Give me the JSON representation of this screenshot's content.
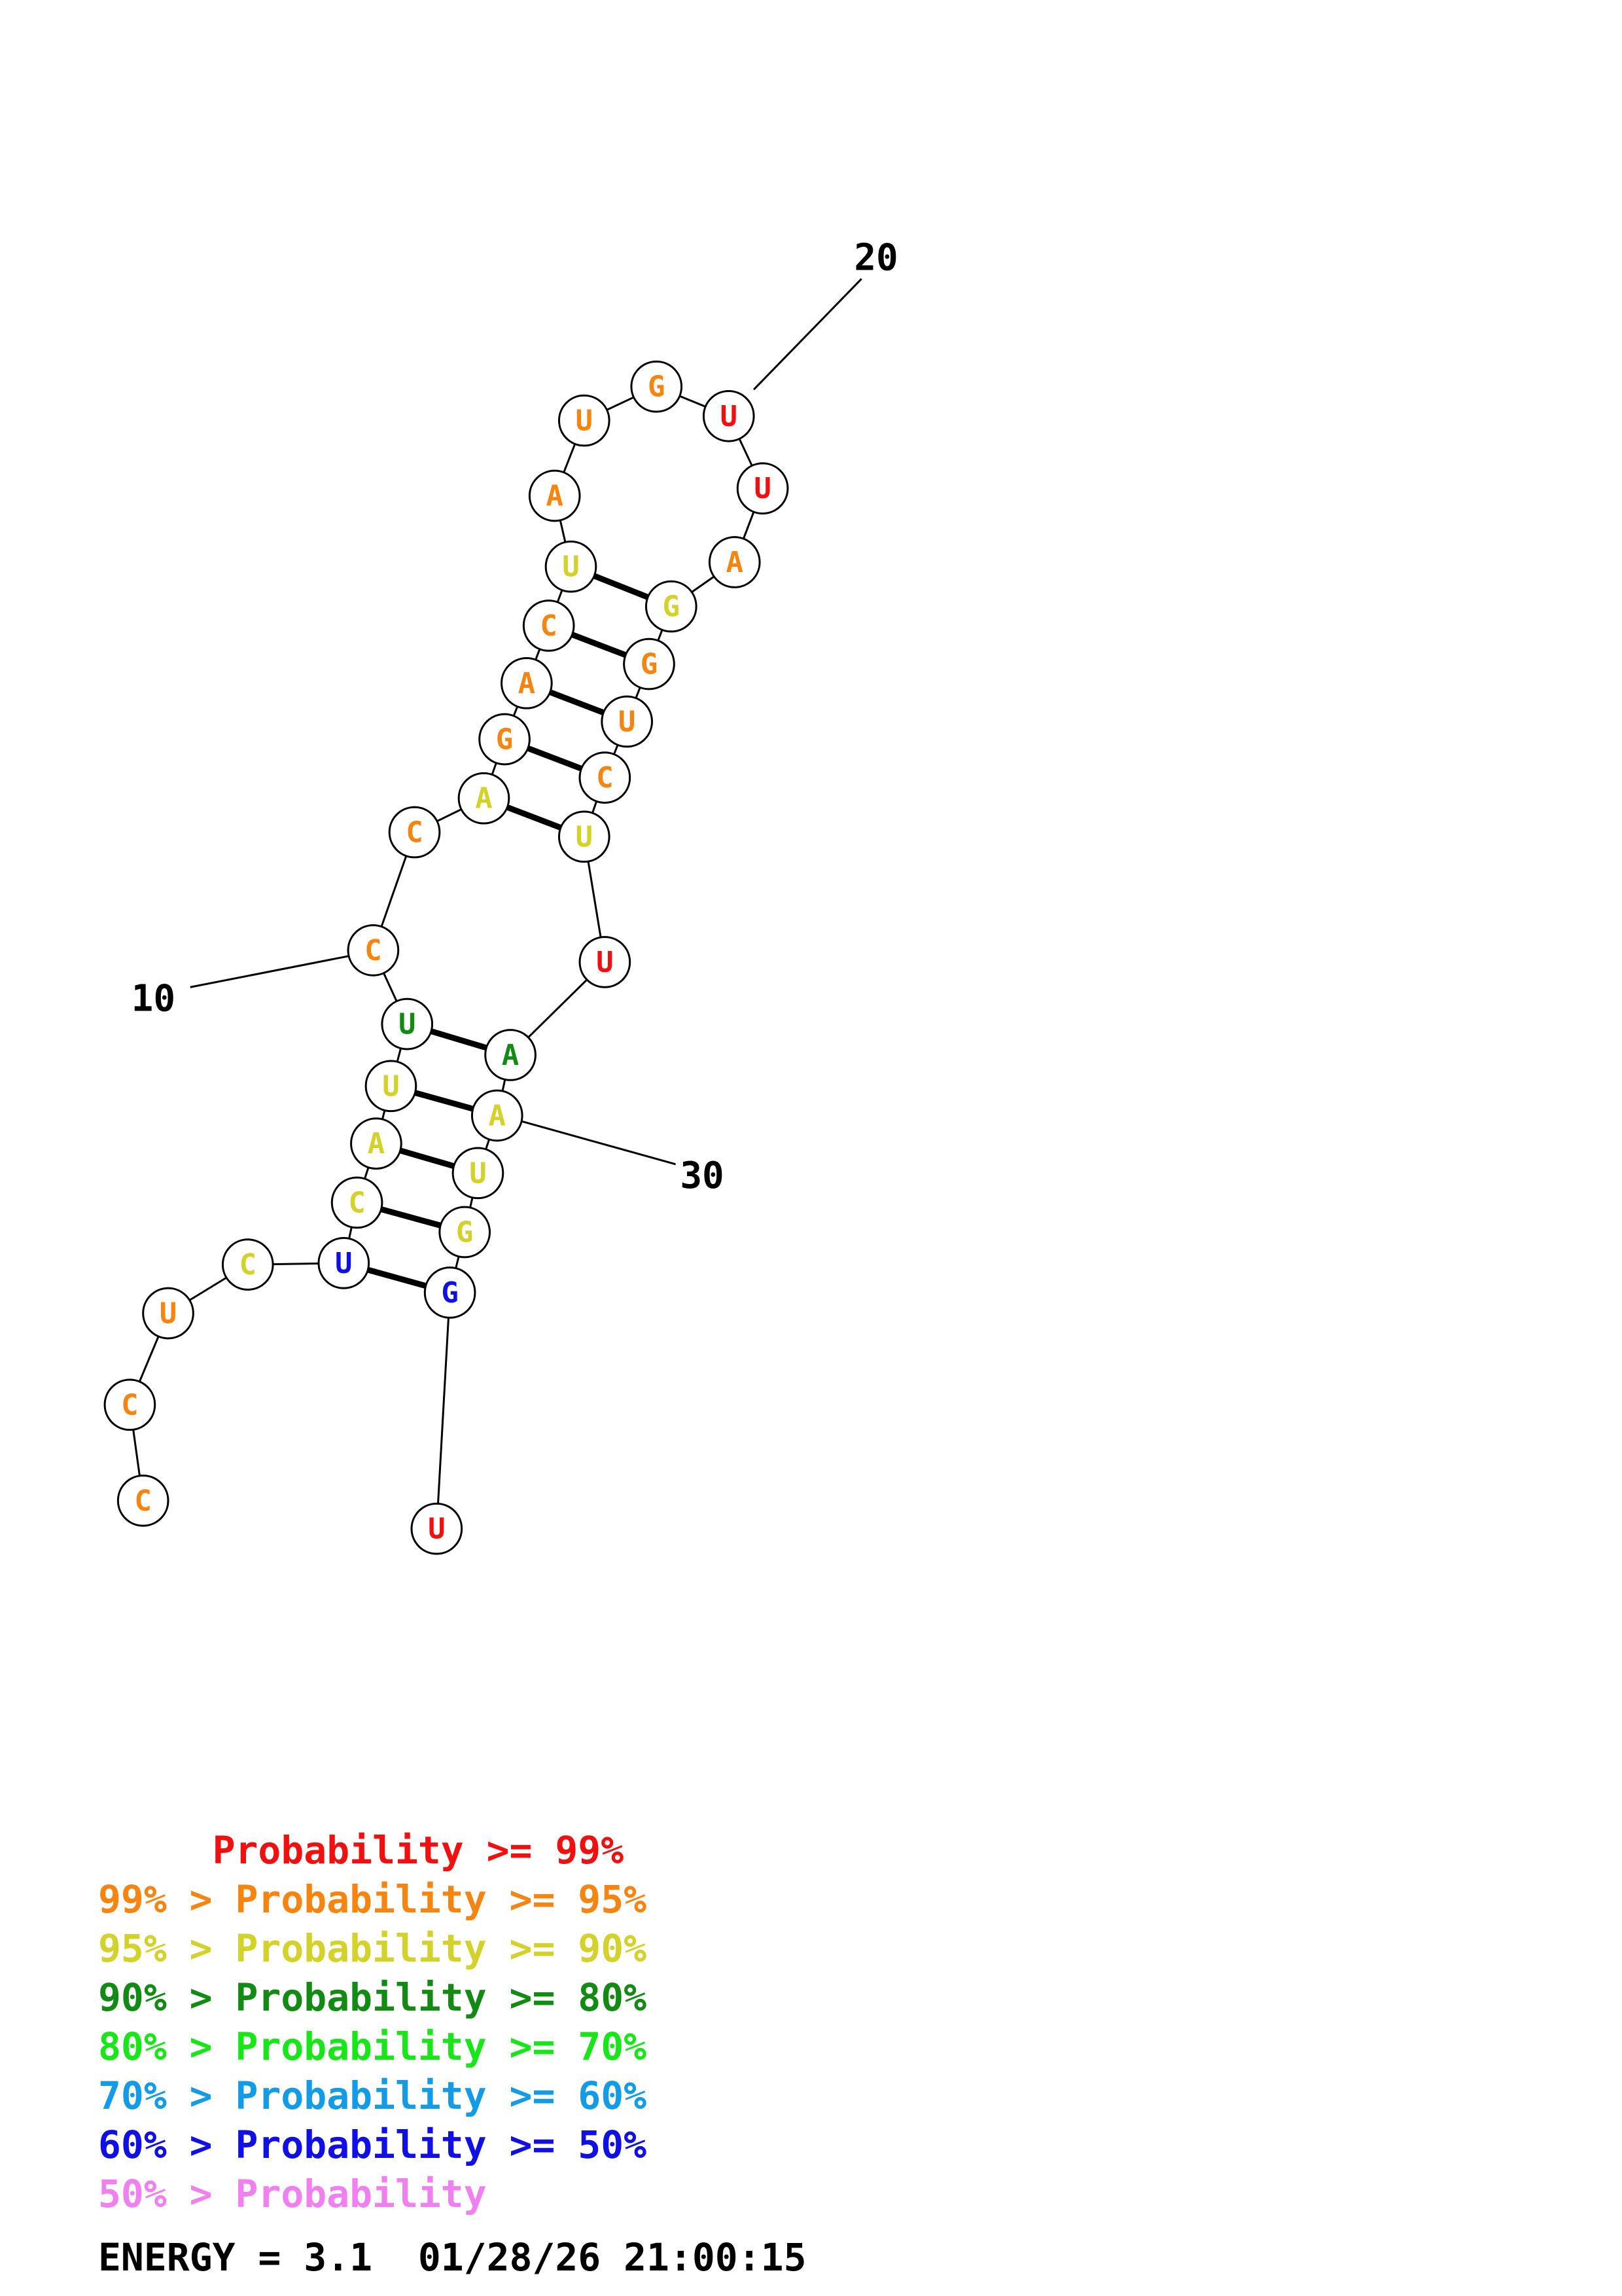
{
  "colors": {
    "red": "#f01010",
    "orange": "#f58410",
    "yellow": "#d2d22a",
    "darkgreen": "#138a13",
    "green": "#19e619",
    "cyan": "#149be6",
    "blue": "#1010e6",
    "pink": "#f080f0"
  },
  "nucleotides": [
    {
      "base": "C",
      "color": "orange"
    },
    {
      "base": "C",
      "color": "orange"
    },
    {
      "base": "U",
      "color": "orange"
    },
    {
      "base": "C",
      "color": "yellow"
    },
    {
      "base": "U",
      "color": "blue"
    },
    {
      "base": "C",
      "color": "yellow"
    },
    {
      "base": "A",
      "color": "yellow"
    },
    {
      "base": "U",
      "color": "yellow"
    },
    {
      "base": "U",
      "color": "darkgreen"
    },
    {
      "base": "C",
      "color": "orange"
    },
    {
      "base": "C",
      "color": "orange"
    },
    {
      "base": "A",
      "color": "yellow"
    },
    {
      "base": "G",
      "color": "orange"
    },
    {
      "base": "A",
      "color": "orange"
    },
    {
      "base": "C",
      "color": "orange"
    },
    {
      "base": "U",
      "color": "yellow"
    },
    {
      "base": "A",
      "color": "orange"
    },
    {
      "base": "U",
      "color": "orange"
    },
    {
      "base": "G",
      "color": "orange"
    },
    {
      "base": "U",
      "color": "red"
    },
    {
      "base": "U",
      "color": "red"
    },
    {
      "base": "A",
      "color": "orange"
    },
    {
      "base": "G",
      "color": "yellow"
    },
    {
      "base": "G",
      "color": "orange"
    },
    {
      "base": "U",
      "color": "orange"
    },
    {
      "base": "C",
      "color": "orange"
    },
    {
      "base": "U",
      "color": "yellow"
    },
    {
      "base": "U",
      "color": "red"
    },
    {
      "base": "A",
      "color": "darkgreen"
    },
    {
      "base": "A",
      "color": "yellow"
    },
    {
      "base": "U",
      "color": "yellow"
    },
    {
      "base": "G",
      "color": "yellow"
    },
    {
      "base": "G",
      "color": "blue"
    },
    {
      "base": "U",
      "color": "red"
    }
  ],
  "base_pairs": [
    [
      5,
      33
    ],
    [
      6,
      32
    ],
    [
      7,
      31
    ],
    [
      8,
      30
    ],
    [
      9,
      29
    ],
    [
      12,
      27
    ],
    [
      13,
      26
    ],
    [
      14,
      25
    ],
    [
      15,
      24
    ],
    [
      16,
      23
    ]
  ],
  "position_labels": [
    {
      "text": "10",
      "index": 10
    },
    {
      "text": "20",
      "index": 20
    },
    {
      "text": "30",
      "index": 30
    }
  ],
  "legend": [
    {
      "text": "     Probability >= 99%",
      "color": "red"
    },
    {
      "text": "99% > Probability >= 95%",
      "color": "orange"
    },
    {
      "text": "95% > Probability >= 90%",
      "color": "yellow"
    },
    {
      "text": "90% > Probability >= 80%",
      "color": "darkgreen"
    },
    {
      "text": "80% > Probability >= 70%",
      "color": "green"
    },
    {
      "text": "70% > Probability >= 60%",
      "color": "cyan"
    },
    {
      "text": "60% > Probability >= 50%",
      "color": "blue"
    },
    {
      "text": "50% > Probability",
      "color": "pink"
    }
  ],
  "energy_line": "ENERGY = 3.1  01/28/26 21:00:15"
}
